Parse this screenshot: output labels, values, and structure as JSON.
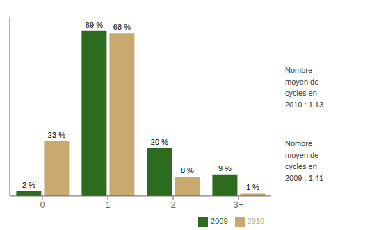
{
  "chart_data": {
    "type": "bar",
    "categories": [
      "0",
      "1",
      "2",
      "3+"
    ],
    "series": [
      {
        "name": "2009",
        "color": "#2d6b1e",
        "values": [
          2,
          69,
          20,
          9
        ],
        "value_labels": [
          "2 %",
          "69 %",
          "20 %",
          "9 %"
        ]
      },
      {
        "name": "2010",
        "color": "#c8a96e",
        "values": [
          23,
          68,
          8,
          1
        ],
        "value_labels": [
          "23 %",
          "68 %",
          "8 %",
          "1 %"
        ]
      }
    ],
    "ylim": [
      0,
      75
    ],
    "tick_labels": "x",
    "data_labels": true,
    "grid": false,
    "legend": "lower right",
    "annotations": [
      "Nombre\nmoyen de\ncycles en\n2010 : 1,13",
      "Nombre\nmoyen de\ncycles en\n2009 : 1,41"
    ]
  }
}
